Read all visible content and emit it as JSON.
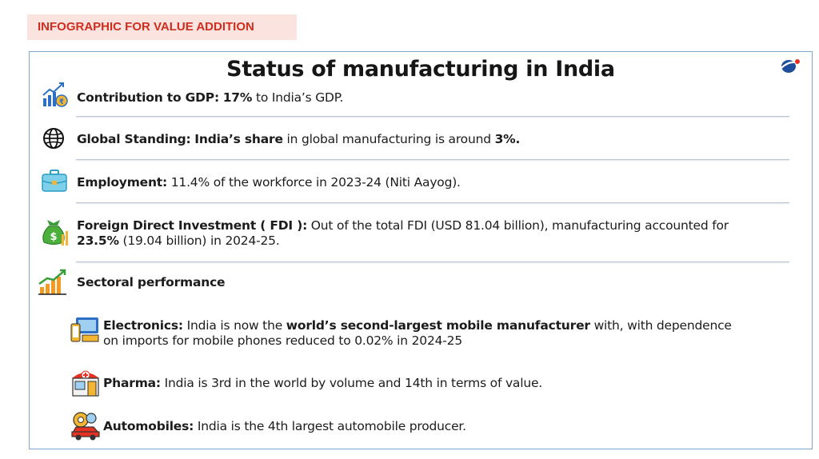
{
  "tag": "INFOGRAPHIC FOR VALUE ADDITION",
  "title": "Status of manufacturing in India",
  "gdp": {
    "label": "Contribution to GDP:",
    "value": "17%",
    "rest": " to India’s GDP."
  },
  "global": {
    "label": "Global Standing:",
    "highlight": "India’s share",
    "mid": " in global manufacturing is around ",
    "value": "3%."
  },
  "employment": {
    "label": "Employment:",
    "rest": " 11.4% of the workforce in 2023-24 (Niti Aayog)."
  },
  "fdi": {
    "label": "Foreign Direct Investment ( FDI ):",
    "rest1": " Out of the total FDI (USD 81.04 billion), manufacturing accounted for",
    "value": "23.5%",
    "rest2": " (19.04 billion) in 2024-25."
  },
  "sectoral": {
    "label": "Sectoral performance"
  },
  "electronics": {
    "label": "Electronics:",
    "pre": " India is now the ",
    "highlight": "world’s second-largest mobile manufacturer",
    "post": " with, with dependence",
    "line2": "on imports for mobile phones reduced to 0.02% in 2024-25"
  },
  "pharma": {
    "label": "Pharma:",
    "rest": " India is 3rd in the world by volume and 14th in terms of value."
  },
  "automobiles": {
    "label": "Automobiles:",
    "rest": " India is the 4th largest automobile producer."
  },
  "colors": {
    "tag_bg": "#fbe3e0",
    "tag_text": "#cf2e1e",
    "card_border": "#7fa6cf",
    "separator": "#b9c7d5"
  },
  "icons": [
    "growth-chart-icon",
    "globe-icon",
    "briefcase-icon",
    "money-bag-icon",
    "bar-chart-icon",
    "electronics-icon",
    "pharmacy-icon",
    "automobile-gear-icon",
    "logo-icon"
  ]
}
